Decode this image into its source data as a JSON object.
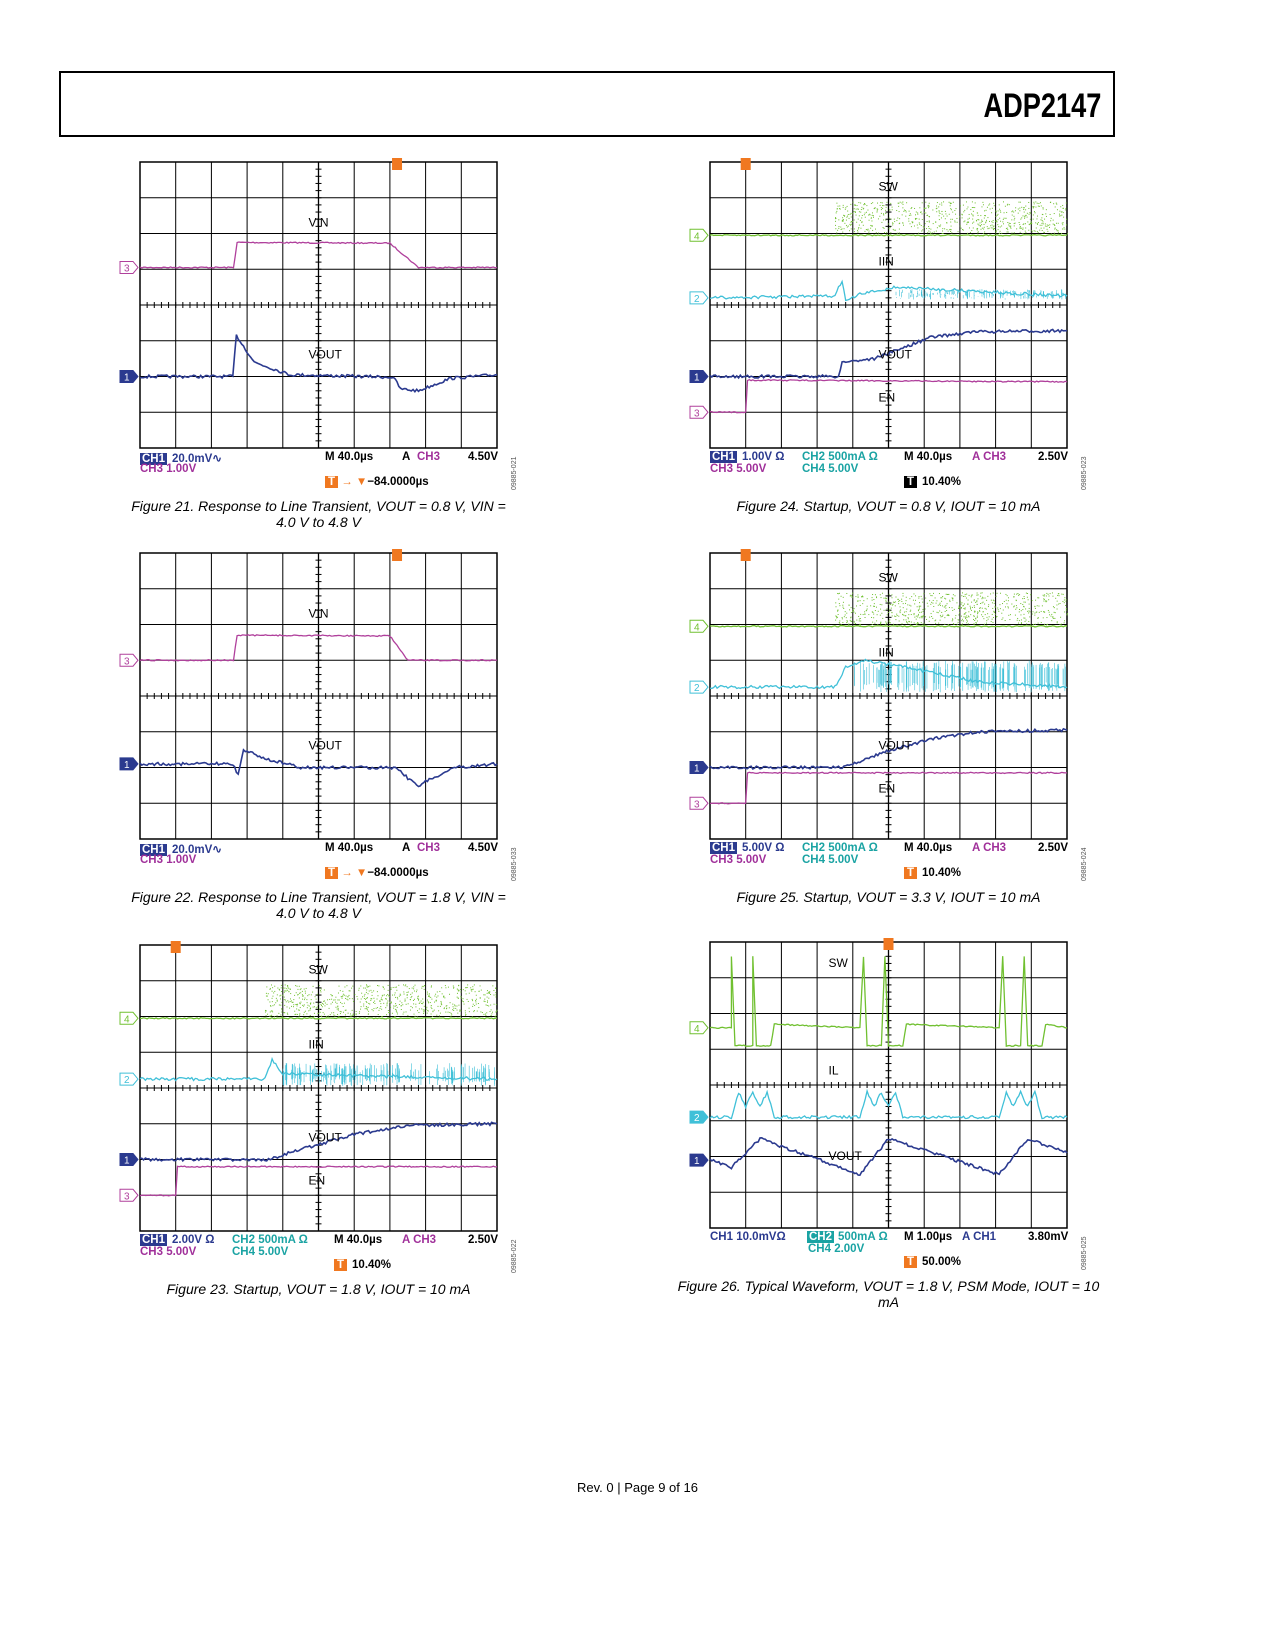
{
  "header": {
    "title": "ADP2147"
  },
  "footer": {
    "text": "Rev. 0 | Page 9 of 16"
  },
  "colors": {
    "ch1": "#2b3a8f",
    "ch2": "#40c0d8",
    "ch3": "#b0409c",
    "ch4": "#70c030",
    "trigger": "#f07820"
  },
  "chart_data": [
    {
      "id": "fig21",
      "type": "line",
      "caption": "Figure 21. Response to Line Transient, VOUT = 0.8 V, VIN = 4.0 V to 4.8 V",
      "code": "09885-021",
      "labels": [
        "VIN",
        "VOUT"
      ],
      "status": {
        "l1a": "CH1",
        "l1b": "20.0mV∿",
        "l1c": "M 40.0µs",
        "l1d": "A",
        "l1e": "CH3",
        "l1f": "4.50V",
        "l2": "CH3  1.00V",
        "trig": "−84.0000µs"
      },
      "series": [
        {
          "name": "VIN",
          "ch": 3,
          "pts": [
            [
              0,
              2.95
            ],
            [
              2.62,
              2.95
            ],
            [
              2.72,
              2.25
            ],
            [
              7.0,
              2.27
            ],
            [
              7.8,
              2.95
            ],
            [
              10,
              2.95
            ]
          ]
        },
        {
          "name": "VOUT",
          "ch": 1,
          "pts": [
            [
              0,
              6.0
            ],
            [
              2.6,
              6.0
            ],
            [
              2.7,
              4.85
            ],
            [
              3.2,
              5.6
            ],
            [
              4.2,
              5.95
            ],
            [
              7.1,
              6.02
            ],
            [
              7.3,
              6.35
            ],
            [
              7.8,
              6.4
            ],
            [
              8.7,
              6.05
            ],
            [
              10,
              5.95
            ]
          ]
        }
      ]
    },
    {
      "id": "fig24",
      "type": "line",
      "caption": "Figure 24. Startup, VOUT = 0.8 V, IOUT = 10 mA",
      "code": "09885-023",
      "labels": [
        "SW",
        "IIN",
        "VOUT",
        "EN"
      ],
      "status": {
        "l1a": "CH1",
        "l1b": "1.00V Ω",
        "l1c": "CH2  500mA Ω",
        "l1d": "M 40.0µs",
        "l1e": "A  CH3",
        "l1f": "2.50V",
        "l2a": "CH3  5.00V",
        "l2b": "CH4  5.00V",
        "trig": "10.40%"
      },
      "series": [
        {
          "name": "SW",
          "ch": 4,
          "pts": [
            [
              0,
              2.05
            ],
            [
              10,
              2.05
            ]
          ],
          "burst": [
            3.5,
            10,
            1.1,
            2.0
          ]
        },
        {
          "name": "IIN",
          "ch": 2,
          "pts": [
            [
              0,
              3.8
            ],
            [
              3.5,
              3.75
            ],
            [
              3.7,
              3.3
            ],
            [
              3.8,
              3.9
            ],
            [
              4.2,
              3.7
            ],
            [
              5.2,
              3.5
            ],
            [
              10,
              3.75
            ]
          ],
          "burst2": [
            5.2,
            10,
            3.55,
            3.85
          ]
        },
        {
          "name": "VOUT",
          "ch": 1,
          "pts": [
            [
              0,
              6.0
            ],
            [
              3.6,
              6.0
            ],
            [
              3.7,
              5.6
            ],
            [
              4.6,
              5.5
            ],
            [
              6.2,
              4.9
            ],
            [
              7.4,
              4.75
            ],
            [
              10,
              4.72
            ]
          ]
        },
        {
          "name": "EN",
          "ch": 3,
          "pts": [
            [
              0,
              7.0
            ],
            [
              1.0,
              7.0
            ],
            [
              1.05,
              6.1
            ],
            [
              10,
              6.15
            ]
          ]
        }
      ]
    },
    {
      "id": "fig22",
      "type": "line",
      "caption": "Figure 22. Response to Line Transient, VOUT = 1.8 V, VIN = 4.0 V to 4.8 V",
      "code": "09885-033",
      "labels": [
        "VIN",
        "VOUT"
      ],
      "status": {
        "l1a": "CH1",
        "l1b": "20.0mV∿",
        "l1c": "M 40.0µs",
        "l1d": "A",
        "l1e": "CH3",
        "l1f": "4.50V",
        "l2": "CH3  1.00V",
        "trig": "−84.0000µs"
      },
      "series": [
        {
          "name": "VIN",
          "ch": 3,
          "pts": [
            [
              0,
              3.0
            ],
            [
              2.62,
              3.0
            ],
            [
              2.72,
              2.3
            ],
            [
              7.0,
              2.32
            ],
            [
              7.5,
              3.0
            ],
            [
              10,
              3.0
            ]
          ]
        },
        {
          "name": "VOUT",
          "ch": 1,
          "pts": [
            [
              0,
              5.9
            ],
            [
              2.6,
              5.9
            ],
            [
              2.75,
              6.2
            ],
            [
              2.9,
              5.5
            ],
            [
              3.5,
              5.75
            ],
            [
              4.5,
              6.0
            ],
            [
              7.2,
              6.0
            ],
            [
              7.5,
              6.3
            ],
            [
              7.8,
              6.5
            ],
            [
              8.8,
              6.0
            ],
            [
              10,
              5.9
            ]
          ]
        }
      ]
    },
    {
      "id": "fig25",
      "type": "line",
      "caption": "Figure 25. Startup, VOUT = 3.3 V, IOUT = 10 mA",
      "code": "09885-024",
      "labels": [
        "SW",
        "IIN",
        "VOUT",
        "EN"
      ],
      "status": {
        "l1a": "CH1",
        "l1b": "5.00V Ω",
        "l1c": "CH2  500mA Ω",
        "l1d": "M 40.0µs",
        "l1e": "A  CH3",
        "l1f": "2.50V",
        "l2a": "CH3  5.00V",
        "l2b": "CH4  5.00V",
        "trig": "10.40%"
      },
      "series": [
        {
          "name": "SW",
          "ch": 4,
          "pts": [
            [
              0,
              2.05
            ],
            [
              10,
              2.05
            ]
          ],
          "burst": [
            3.5,
            10,
            1.1,
            2.0
          ]
        },
        {
          "name": "IIN",
          "ch": 2,
          "pts": [
            [
              0,
              3.75
            ],
            [
              3.5,
              3.75
            ],
            [
              3.8,
              3.2
            ],
            [
              4.3,
              3.0
            ],
            [
              5.5,
              3.2
            ],
            [
              7.5,
              3.6
            ],
            [
              10,
              3.75
            ]
          ],
          "burst2": [
            4.0,
            10,
            3.0,
            3.9
          ]
        },
        {
          "name": "VOUT",
          "ch": 1,
          "pts": [
            [
              0,
              6.0
            ],
            [
              3.7,
              6.0
            ],
            [
              4.8,
              5.6
            ],
            [
              6.2,
              5.2
            ],
            [
              7.5,
              5.0
            ],
            [
              10,
              4.95
            ]
          ]
        },
        {
          "name": "EN",
          "ch": 3,
          "pts": [
            [
              0,
              7.0
            ],
            [
              1.0,
              7.0
            ],
            [
              1.05,
              6.15
            ],
            [
              10,
              6.15
            ]
          ]
        }
      ]
    },
    {
      "id": "fig23",
      "type": "line",
      "caption": "Figure 23. Startup, VOUT = 1.8 V, IOUT = 10 mA",
      "code": "09885-022",
      "labels": [
        "SW",
        "IIN",
        "VOUT",
        "EN"
      ],
      "status": {
        "l1a": "CH1",
        "l1b": "2.00V Ω",
        "l1c": "CH2  500mA Ω",
        "l1d": "M 40.0µs",
        "l1e": "A  CH3",
        "l1f": "2.50V",
        "l2a": "CH3  5.00V",
        "l2b": "CH4  5.00V",
        "trig": "10.40%"
      },
      "series": [
        {
          "name": "SW",
          "ch": 4,
          "pts": [
            [
              0,
              2.05
            ],
            [
              10,
              2.05
            ]
          ],
          "burst": [
            3.5,
            10,
            1.1,
            2.0
          ]
        },
        {
          "name": "IIN",
          "ch": 2,
          "pts": [
            [
              0,
              3.75
            ],
            [
              3.5,
              3.75
            ],
            [
              3.7,
              3.2
            ],
            [
              4.0,
              3.6
            ],
            [
              10,
              3.75
            ]
          ],
          "burst2": [
            4.0,
            10,
            3.3,
            3.95
          ]
        },
        {
          "name": "VOUT",
          "ch": 1,
          "pts": [
            [
              0,
              6.0
            ],
            [
              3.6,
              6.0
            ],
            [
              4.2,
              5.8
            ],
            [
              6.0,
              5.3
            ],
            [
              7.5,
              5.05
            ],
            [
              10,
              5.0
            ]
          ]
        },
        {
          "name": "EN",
          "ch": 3,
          "pts": [
            [
              0,
              7.0
            ],
            [
              1.0,
              7.0
            ],
            [
              1.05,
              6.2
            ],
            [
              10,
              6.2
            ]
          ]
        }
      ]
    },
    {
      "id": "fig26",
      "type": "line",
      "caption": "Figure 26. Typical Waveform, VOUT = 1.8 V, PSM Mode, IOUT = 10 mA",
      "code": "09885-025",
      "labels": [
        "SW",
        "IL",
        "VOUT"
      ],
      "status": {
        "l1a": "CH1  10.0mVΩ",
        "l1b": "CH2",
        "l1c": "500mA Ω",
        "l1d": "M 1.00µs",
        "l1e": "A  CH1",
        "l1f": "3.80mV",
        "l2b": "CH4  2.00V",
        "trig": "50.00%"
      },
      "series": [
        {
          "name": "SW",
          "ch": 4,
          "pts": [
            [
              0,
              2.4
            ],
            [
              0.6,
              2.4
            ],
            [
              0.6,
              0.4
            ],
            [
              0.7,
              2.9
            ],
            [
              1.2,
              2.9
            ],
            [
              1.2,
              0.4
            ],
            [
              1.3,
              2.9
            ],
            [
              1.7,
              2.9
            ],
            [
              1.8,
              2.3
            ],
            [
              4.2,
              2.4
            ],
            [
              4.3,
              0.4
            ],
            [
              4.4,
              2.9
            ],
            [
              4.8,
              2.9
            ],
            [
              4.9,
              0.4
            ],
            [
              5.0,
              2.9
            ],
            [
              5.4,
              2.9
            ],
            [
              5.5,
              2.3
            ],
            [
              8.1,
              2.4
            ],
            [
              8.2,
              0.4
            ],
            [
              8.3,
              2.9
            ],
            [
              8.7,
              2.9
            ],
            [
              8.8,
              0.4
            ],
            [
              8.9,
              2.9
            ],
            [
              9.3,
              2.9
            ],
            [
              9.4,
              2.3
            ],
            [
              10,
              2.4
            ]
          ]
        },
        {
          "name": "IL",
          "ch": 2,
          "pts": [
            [
              0,
              4.9
            ],
            [
              0.6,
              4.9
            ],
            [
              0.8,
              4.2
            ],
            [
              1.0,
              4.6
            ],
            [
              1.2,
              4.2
            ],
            [
              1.4,
              4.6
            ],
            [
              1.6,
              4.2
            ],
            [
              1.8,
              4.9
            ],
            [
              4.2,
              4.9
            ],
            [
              4.4,
              4.2
            ],
            [
              4.6,
              4.6
            ],
            [
              4.8,
              4.2
            ],
            [
              5.0,
              4.6
            ],
            [
              5.2,
              4.2
            ],
            [
              5.4,
              4.9
            ],
            [
              8.1,
              4.9
            ],
            [
              8.3,
              4.2
            ],
            [
              8.5,
              4.6
            ],
            [
              8.7,
              4.2
            ],
            [
              8.9,
              4.6
            ],
            [
              9.1,
              4.2
            ],
            [
              9.3,
              4.9
            ],
            [
              10,
              4.9
            ]
          ]
        },
        {
          "name": "VOUT",
          "ch": 1,
          "pts": [
            [
              0,
              6.1
            ],
            [
              0.6,
              6.3
            ],
            [
              1.4,
              5.5
            ],
            [
              4.2,
              6.5
            ],
            [
              5.0,
              5.5
            ],
            [
              8.1,
              6.5
            ],
            [
              8.9,
              5.5
            ],
            [
              10,
              5.9
            ]
          ]
        }
      ]
    }
  ]
}
